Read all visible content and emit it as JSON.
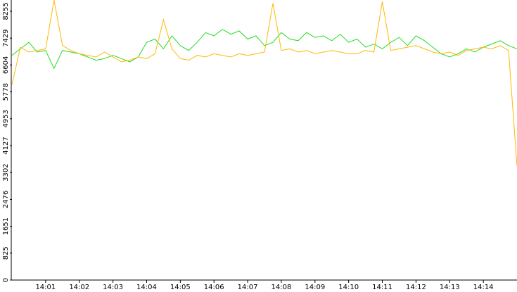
{
  "chart_data": {
    "type": "line",
    "x": [
      0,
      15,
      30,
      45,
      60,
      75,
      90,
      105,
      120,
      135,
      150,
      165,
      180,
      195,
      210,
      225,
      240,
      255,
      270,
      285,
      300,
      315,
      330,
      345,
      360,
      375,
      390,
      405,
      420,
      435,
      450,
      465,
      480,
      495,
      510,
      525,
      540,
      555,
      570,
      585,
      600,
      615,
      630,
      645,
      660,
      675,
      690,
      705,
      720,
      735,
      750,
      765,
      780,
      795,
      810,
      825,
      840,
      855,
      870,
      885,
      900
    ],
    "series": [
      {
        "name": "green",
        "color": "#22dd22",
        "values": [
          6900,
          7100,
          7300,
          7000,
          7050,
          6500,
          7050,
          7000,
          6950,
          6850,
          6750,
          6800,
          6900,
          6800,
          6700,
          6850,
          7300,
          7400,
          7100,
          7500,
          7200,
          7050,
          7300,
          7600,
          7500,
          7700,
          7550,
          7650,
          7400,
          7500,
          7200,
          7300,
          7600,
          7400,
          7350,
          7600,
          7450,
          7500,
          7350,
          7550,
          7300,
          7400,
          7150,
          7250,
          7100,
          7300,
          7450,
          7200,
          7500,
          7350,
          7150,
          6950,
          6850,
          6950,
          7100,
          7000,
          7150,
          7250,
          7350,
          7200,
          7100
        ]
      },
      {
        "name": "orange",
        "color": "#ffb800",
        "values": [
          6000,
          7150,
          7000,
          7050,
          7100,
          8600,
          7200,
          7050,
          6950,
          6900,
          6850,
          7000,
          6850,
          6700,
          6750,
          6850,
          6800,
          6950,
          8000,
          7100,
          6800,
          6750,
          6900,
          6850,
          6950,
          6900,
          6850,
          6950,
          6900,
          6950,
          7000,
          8500,
          7050,
          7100,
          7000,
          7050,
          6950,
          7000,
          7050,
          7000,
          6950,
          6950,
          7050,
          7000,
          8550,
          7050,
          7100,
          7150,
          7200,
          7100,
          7000,
          6950,
          7000,
          6900,
          7050,
          7100,
          7150,
          7100,
          7200,
          7050,
          3500
        ]
      }
    ],
    "xlim": [
      0,
      900
    ],
    "xticks": [
      {
        "value": 60,
        "label": "14:01"
      },
      {
        "value": 120,
        "label": "14:02"
      },
      {
        "value": 180,
        "label": "14:03"
      },
      {
        "value": 240,
        "label": "14:04"
      },
      {
        "value": 300,
        "label": "14:05"
      },
      {
        "value": 360,
        "label": "14:06"
      },
      {
        "value": 420,
        "label": "14:07"
      },
      {
        "value": 480,
        "label": "14:08"
      },
      {
        "value": 540,
        "label": "14:09"
      },
      {
        "value": 600,
        "label": "14:10"
      },
      {
        "value": 660,
        "label": "14:11"
      },
      {
        "value": 720,
        "label": "14:12"
      },
      {
        "value": 780,
        "label": "14:13"
      },
      {
        "value": 840,
        "label": "14:14"
      }
    ],
    "ylim": [
      0,
      8600
    ],
    "yticks": [
      0,
      825,
      1651,
      2476,
      3302,
      4127,
      4953,
      5778,
      6604,
      7429,
      8255
    ],
    "grid": false
  }
}
